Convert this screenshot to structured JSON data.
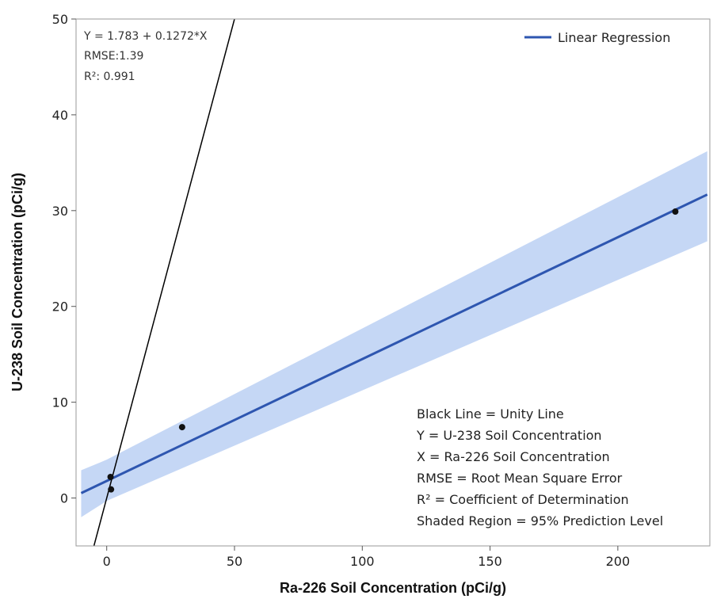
{
  "chart_data": {
    "type": "scatter",
    "xlabel": "Ra-226 Soil Concentration (pCi/g)",
    "ylabel": "U-238 Soil Concentration (pCi/g)",
    "xlim": [
      -12,
      236
    ],
    "ylim": [
      -5,
      50
    ],
    "xticks": [
      0,
      50,
      100,
      150,
      200
    ],
    "yticks": [
      0,
      10,
      20,
      30,
      40,
      50
    ],
    "grid": false,
    "legend": {
      "position": "top-right",
      "entries": [
        "Linear Regression"
      ]
    },
    "points": [
      {
        "x": 1.5,
        "y": 2.2
      },
      {
        "x": 1.7,
        "y": 0.9
      },
      {
        "x": 29.5,
        "y": 7.4
      },
      {
        "x": 222.5,
        "y": 29.9
      }
    ],
    "regression": {
      "intercept": 1.783,
      "slope": 0.1272,
      "color": "#2e56b0"
    },
    "prediction_band": {
      "color": "#c5d7f5",
      "lower": [
        [
          -10,
          -2.0
        ],
        [
          0,
          -0.3
        ],
        [
          235,
          26.8
        ]
      ],
      "upper": [
        [
          -10,
          2.9
        ],
        [
          0,
          4.0
        ],
        [
          235,
          36.2
        ]
      ]
    },
    "unity_line": {
      "slope": 1,
      "intercept": 0,
      "color": "#000000"
    },
    "annotations": [
      "Y = 1.783 + 0.1272*X",
      "RMSE:1.39",
      "R²: 0.991"
    ],
    "notes": [
      "Black Line = Unity Line",
      "Y = U-238 Soil Concentration",
      "X = Ra-226 Soil Concentration",
      "RMSE = Root Mean Square Error",
      "R² = Coefficient of Determination",
      "Shaded Region = 95% Prediction Level"
    ]
  }
}
